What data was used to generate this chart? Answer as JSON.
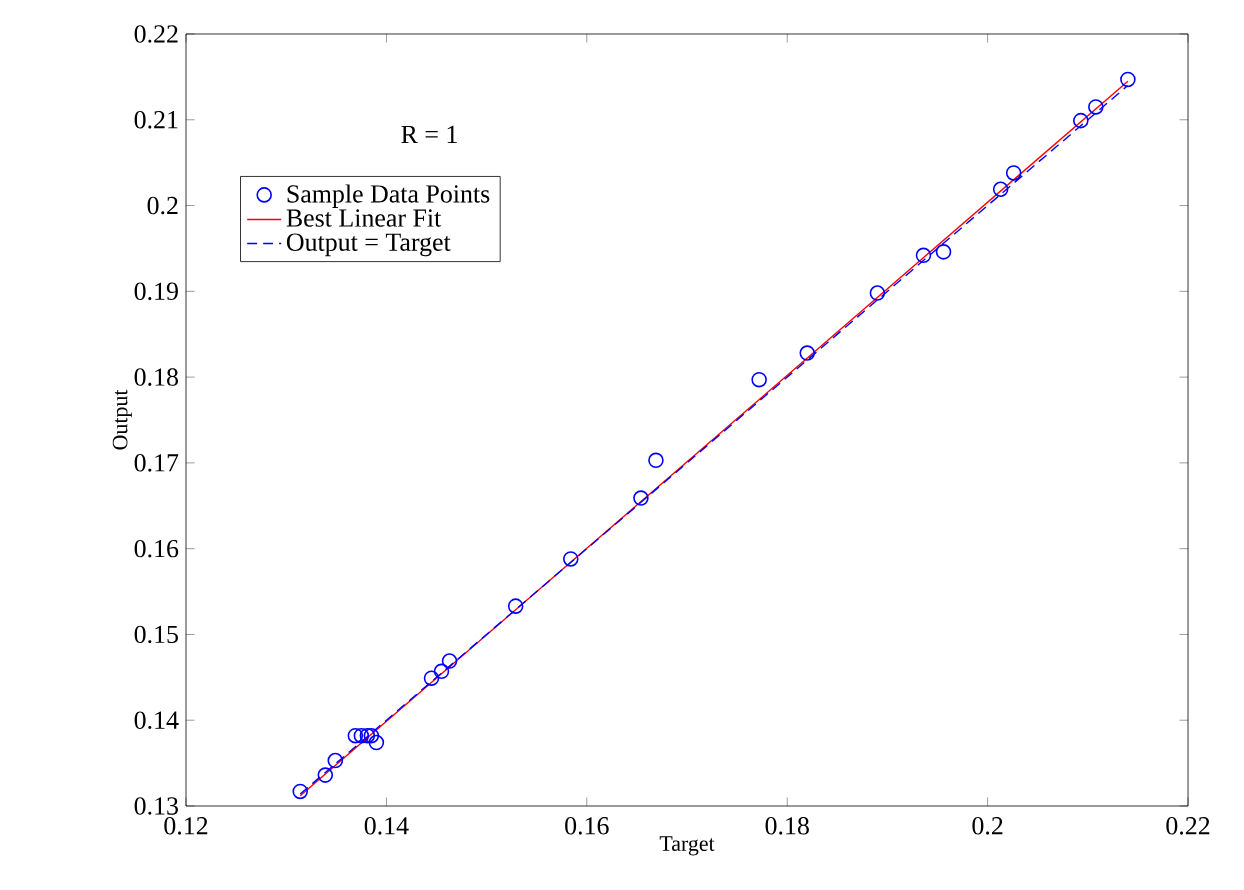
{
  "chart_data": {
    "type": "scatter",
    "xlabel": "Target",
    "ylabel": "Output",
    "annotations": [
      "R = 1"
    ],
    "xlim": [
      0.12,
      0.22
    ],
    "ylim": [
      0.13,
      0.22
    ],
    "xticks": [
      0.12,
      0.14,
      0.16,
      0.18,
      0.2,
      0.22
    ],
    "yticks": [
      0.13,
      0.14,
      0.15,
      0.16,
      0.17,
      0.18,
      0.19,
      0.2,
      0.21,
      0.22
    ],
    "grid": false,
    "legend": "top left",
    "series": [
      {
        "name": "Sample Data Points",
        "color": "#0000ff",
        "marker": "circle",
        "x": [
          0.1314,
          0.1339,
          0.1349,
          0.1369,
          0.1375,
          0.1381,
          0.1385,
          0.139,
          0.1445,
          0.1455,
          0.1463,
          0.1529,
          0.1584,
          0.1654,
          0.1669,
          0.1772,
          0.182,
          0.189,
          0.1936,
          0.1956,
          0.2013,
          0.2026,
          0.2093,
          0.2108,
          0.214
        ],
        "values": [
          0.1317,
          0.1336,
          0.1353,
          0.1382,
          0.1382,
          0.1382,
          0.1382,
          0.1374,
          0.1449,
          0.1457,
          0.1469,
          0.1533,
          0.1588,
          0.1659,
          0.1703,
          0.1797,
          0.1828,
          0.1898,
          0.1942,
          0.1946,
          0.2019,
          0.2038,
          0.2099,
          0.2115,
          0.2147
        ]
      },
      {
        "name": "Best Linear Fit",
        "type": "line",
        "color": "#ff0000",
        "line_style": "solid",
        "marker": "none",
        "x": [
          0.1314,
          0.214
        ],
        "values": [
          0.1312,
          0.2145
        ]
      },
      {
        "name": "Output = Target",
        "type": "line",
        "color": "#0000ff",
        "line_style": "dashed",
        "marker": "none",
        "x": [
          0.1314,
          0.214
        ],
        "values": [
          0.1314,
          0.214
        ]
      }
    ]
  }
}
